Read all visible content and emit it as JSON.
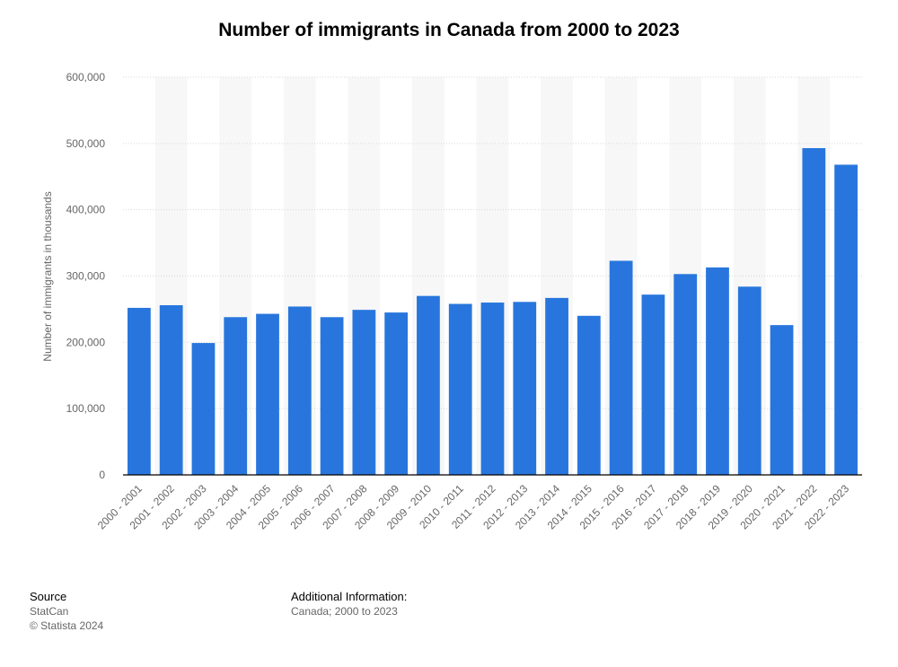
{
  "chart_data": {
    "type": "bar",
    "title": "Number of immigrants in Canada from 2000 to 2023",
    "xlabel": "",
    "ylabel": "Number of immigrants in thousands",
    "ylim": [
      0,
      600000
    ],
    "yticks": [
      0,
      100000,
      200000,
      300000,
      400000,
      500000,
      600000
    ],
    "ytick_labels": [
      "0",
      "100,000",
      "200,000",
      "300,000",
      "400,000",
      "500,000",
      "600,000"
    ],
    "grid": true,
    "categories": [
      "2000 - 2001",
      "2001 - 2002",
      "2002 - 2003",
      "2003 - 2004",
      "2004 - 2005",
      "2005 - 2006",
      "2006 - 2007",
      "2007 - 2008",
      "2008 - 2009",
      "2009 - 2010",
      "2010 - 2011",
      "2011 - 2012",
      "2012 - 2013",
      "2013 - 2014",
      "2014 - 2015",
      "2015 - 2016",
      "2016 - 2017",
      "2017 - 2018",
      "2018 - 2019",
      "2019 - 2020",
      "2020 - 2021",
      "2021 - 2022",
      "2022 - 2023"
    ],
    "values": [
      252000,
      256000,
      199000,
      238000,
      243000,
      254000,
      238000,
      249000,
      245000,
      270000,
      258000,
      260000,
      261000,
      267000,
      240000,
      323000,
      272000,
      303000,
      313000,
      284000,
      226000,
      493000,
      468000
    ],
    "series_color": "#2876dd",
    "gridline_color": "#d8d8d8",
    "stripe_color": "#f7f7f7",
    "axis_color": "#000000"
  },
  "footer": {
    "source_heading": "Source",
    "source_name": "StatCan",
    "copyright": "© Statista 2024",
    "info_heading": "Additional Information:",
    "info_text": "Canada; 2000 to 2023"
  }
}
